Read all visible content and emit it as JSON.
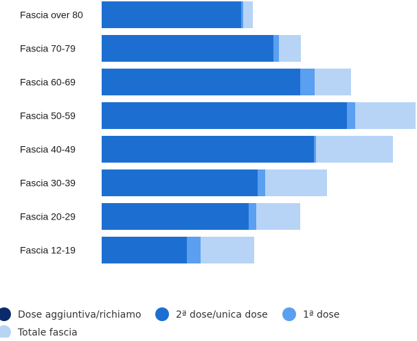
{
  "chart_data": {
    "type": "bar",
    "orientation": "horizontal",
    "stacked": true,
    "categories": [
      "Fascia over 80",
      "Fascia 70-79",
      "Fascia 60-69",
      "Fascia 50-59",
      "Fascia 40-49",
      "Fascia 30-39",
      "Fascia 20-29",
      "Fascia 12-19"
    ],
    "series": [
      {
        "name": "Dose aggiuntiva/richiamo",
        "color": "#0b2a6b",
        "values": [
          0,
          0,
          0,
          0,
          0,
          0,
          0,
          0
        ]
      },
      {
        "name": "2ª dose/unica dose",
        "color": "#1c6fd1",
        "values": [
          203,
          250,
          289,
          357,
          309,
          227,
          214,
          124
        ]
      },
      {
        "name": "1ª dose",
        "color": "#5a9ff0",
        "values": [
          3,
          8,
          21,
          12,
          3,
          11,
          11,
          20
        ]
      },
      {
        "name": "Totale fascia",
        "color": "#b7d4f6",
        "values": [
          14,
          32,
          53,
          88,
          112,
          90,
          64,
          78
        ]
      }
    ],
    "xlim": [
      0,
      458
    ],
    "grid": false,
    "legend": "bottom"
  }
}
